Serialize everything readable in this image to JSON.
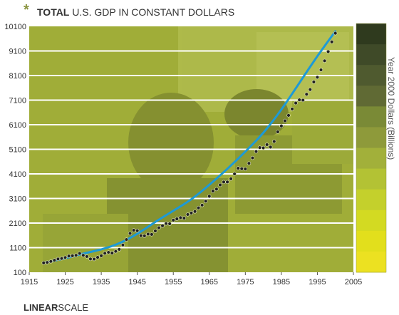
{
  "chart_data": {
    "type": "scatter",
    "title_bold": "TOTAL",
    "title_rest": " U.S. GDP IN CONSTANT DOLLARS",
    "footer_bold": "LINEAR",
    "footer_rest": "SCALE",
    "ylabel": "Year 2000 Dollars (Billions)",
    "xlim": [
      1915,
      2005
    ],
    "ylim": [
      100,
      10100
    ],
    "x_ticks": [
      "1915",
      "1925",
      "1935",
      "1945",
      "1955",
      "1965",
      "1975",
      "1985",
      "1995",
      "2005"
    ],
    "y_ticks": [
      "100",
      "1100",
      "2100",
      "3100",
      "4100",
      "5100",
      "6100",
      "7100",
      "8100",
      "9100",
      "10100"
    ],
    "grid": true,
    "colors": {
      "plot_bg": "#a0ad38",
      "trend": "#1d9ad6",
      "points": "#222222",
      "gridline": "#ffffff"
    },
    "trend_points": [
      [
        1919,
        480
      ],
      [
        1925,
        660
      ],
      [
        1930,
        860
      ],
      [
        1935,
        1020
      ],
      [
        1940,
        1260
      ],
      [
        1945,
        1650
      ],
      [
        1950,
        2150
      ],
      [
        1955,
        2600
      ],
      [
        1960,
        3050
      ],
      [
        1965,
        3650
      ],
      [
        1970,
        4300
      ],
      [
        1975,
        5000
      ],
      [
        1980,
        5750
      ],
      [
        1985,
        6700
      ],
      [
        1990,
        7800
      ],
      [
        1995,
        8900
      ],
      [
        2000,
        9900
      ]
    ],
    "points": [
      [
        1919,
        480
      ],
      [
        1920,
        500
      ],
      [
        1921,
        540
      ],
      [
        1922,
        590
      ],
      [
        1923,
        640
      ],
      [
        1924,
        660
      ],
      [
        1925,
        700
      ],
      [
        1926,
        760
      ],
      [
        1927,
        770
      ],
      [
        1928,
        790
      ],
      [
        1929,
        865
      ],
      [
        1930,
        790
      ],
      [
        1931,
        740
      ],
      [
        1932,
        640
      ],
      [
        1933,
        635
      ],
      [
        1934,
        705
      ],
      [
        1935,
        770
      ],
      [
        1936,
        870
      ],
      [
        1937,
        910
      ],
      [
        1938,
        880
      ],
      [
        1939,
        950
      ],
      [
        1940,
        1030
      ],
      [
        1941,
        1210
      ],
      [
        1942,
        1430
      ],
      [
        1943,
        1680
      ],
      [
        1944,
        1810
      ],
      [
        1945,
        1790
      ],
      [
        1946,
        1590
      ],
      [
        1947,
        1580
      ],
      [
        1948,
        1650
      ],
      [
        1949,
        1640
      ],
      [
        1950,
        1780
      ],
      [
        1951,
        1910
      ],
      [
        1952,
        1990
      ],
      [
        1953,
        2080
      ],
      [
        1954,
        2070
      ],
      [
        1955,
        2220
      ],
      [
        1956,
        2270
      ],
      [
        1957,
        2320
      ],
      [
        1958,
        2300
      ],
      [
        1959,
        2450
      ],
      [
        1960,
        2510
      ],
      [
        1961,
        2570
      ],
      [
        1962,
        2720
      ],
      [
        1963,
        2830
      ],
      [
        1964,
        2990
      ],
      [
        1965,
        3190
      ],
      [
        1966,
        3400
      ],
      [
        1967,
        3480
      ],
      [
        1968,
        3650
      ],
      [
        1969,
        3770
      ],
      [
        1970,
        3770
      ],
      [
        1971,
        3900
      ],
      [
        1972,
        4100
      ],
      [
        1973,
        4330
      ],
      [
        1974,
        4310
      ],
      [
        1975,
        4300
      ],
      [
        1976,
        4530
      ],
      [
        1977,
        4750
      ],
      [
        1978,
        5010
      ],
      [
        1979,
        5170
      ],
      [
        1980,
        5160
      ],
      [
        1981,
        5290
      ],
      [
        1982,
        5190
      ],
      [
        1983,
        5420
      ],
      [
        1984,
        5810
      ],
      [
        1985,
        6050
      ],
      [
        1986,
        6260
      ],
      [
        1987,
        6480
      ],
      [
        1988,
        6740
      ],
      [
        1989,
        6980
      ],
      [
        1990,
        7110
      ],
      [
        1991,
        7100
      ],
      [
        1992,
        7340
      ],
      [
        1993,
        7530
      ],
      [
        1994,
        7840
      ],
      [
        1995,
        8030
      ],
      [
        1996,
        8330
      ],
      [
        1997,
        8700
      ],
      [
        1998,
        9070
      ],
      [
        1999,
        9470
      ],
      [
        2000,
        9820
      ]
    ],
    "color_scale": [
      "#2f3a1e",
      "#3f4a28",
      "#4f5a2f",
      "#606a34",
      "#7a8a36",
      "#8e9a3a",
      "#a2b03a",
      "#b3c234",
      "#c4d02c",
      "#d3da22",
      "#e2df1c",
      "#ece121"
    ]
  }
}
